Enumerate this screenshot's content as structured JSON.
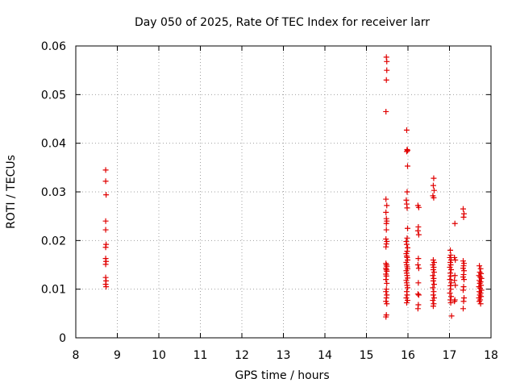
{
  "chart_data": {
    "type": "scatter",
    "title": "Day 050 of 2025, Rate Of TEC Index for receiver larr",
    "xlabel": "GPS time / hours",
    "ylabel": "ROTI / TECUs",
    "xlim": [
      8,
      18
    ],
    "ylim": [
      0,
      0.06
    ],
    "xticks": [
      "8",
      "9",
      "10",
      "11",
      "12",
      "13",
      "14",
      "15",
      "16",
      "17",
      "18"
    ],
    "yticks": [
      "0",
      "0.01",
      "0.02",
      "0.03",
      "0.04",
      "0.05",
      "0.06"
    ],
    "grid": true,
    "marker": "+",
    "color": "#e00000",
    "series": [
      {
        "points": [
          [
            8.72,
            0.0345
          ],
          [
            8.72,
            0.0322
          ],
          [
            8.73,
            0.0294
          ],
          [
            8.72,
            0.024
          ],
          [
            8.72,
            0.0222
          ],
          [
            8.73,
            0.0192
          ],
          [
            8.72,
            0.0186
          ],
          [
            8.72,
            0.0163
          ],
          [
            8.73,
            0.0157
          ],
          [
            8.72,
            0.0151
          ],
          [
            8.72,
            0.0124
          ],
          [
            8.73,
            0.0117
          ],
          [
            8.72,
            0.011
          ],
          [
            8.73,
            0.0105
          ],
          [
            15.48,
            0.0577
          ],
          [
            15.49,
            0.0568
          ],
          [
            15.49,
            0.055
          ],
          [
            15.48,
            0.053
          ],
          [
            15.47,
            0.0465
          ],
          [
            15.47,
            0.0285
          ],
          [
            15.49,
            0.0272
          ],
          [
            15.47,
            0.0258
          ],
          [
            15.48,
            0.0245
          ],
          [
            15.49,
            0.024
          ],
          [
            15.48,
            0.0235
          ],
          [
            15.48,
            0.0222
          ],
          [
            15.47,
            0.0203
          ],
          [
            15.49,
            0.0198
          ],
          [
            15.48,
            0.0193
          ],
          [
            15.47,
            0.0187
          ],
          [
            15.47,
            0.0153
          ],
          [
            15.48,
            0.015
          ],
          [
            15.49,
            0.0147
          ],
          [
            15.47,
            0.0143
          ],
          [
            15.48,
            0.014
          ],
          [
            15.49,
            0.0137
          ],
          [
            15.47,
            0.0131
          ],
          [
            15.48,
            0.0127
          ],
          [
            15.47,
            0.012
          ],
          [
            15.49,
            0.0112
          ],
          [
            15.48,
            0.01
          ],
          [
            15.47,
            0.0095
          ],
          [
            15.49,
            0.0088
          ],
          [
            15.48,
            0.0082
          ],
          [
            15.47,
            0.0075
          ],
          [
            15.49,
            0.007
          ],
          [
            15.48,
            0.0047
          ],
          [
            15.47,
            0.0043
          ],
          [
            15.97,
            0.0427
          ],
          [
            15.98,
            0.0387
          ],
          [
            15.99,
            0.0385
          ],
          [
            15.97,
            0.0383
          ],
          [
            15.99,
            0.0353
          ],
          [
            15.98,
            0.03
          ],
          [
            15.96,
            0.0283
          ],
          [
            15.97,
            0.0275
          ],
          [
            15.98,
            0.0267
          ],
          [
            15.99,
            0.0225
          ],
          [
            15.98,
            0.0205
          ],
          [
            15.96,
            0.0198
          ],
          [
            15.97,
            0.0192
          ],
          [
            15.99,
            0.0185
          ],
          [
            15.98,
            0.0178
          ],
          [
            15.96,
            0.0173
          ],
          [
            15.97,
            0.0168
          ],
          [
            15.98,
            0.0165
          ],
          [
            15.99,
            0.016
          ],
          [
            15.96,
            0.0155
          ],
          [
            15.97,
            0.015
          ],
          [
            15.98,
            0.0146
          ],
          [
            15.99,
            0.0142
          ],
          [
            15.96,
            0.0138
          ],
          [
            15.97,
            0.0133
          ],
          [
            15.98,
            0.0128
          ],
          [
            15.99,
            0.0123
          ],
          [
            15.96,
            0.0118
          ],
          [
            15.97,
            0.0113
          ],
          [
            15.98,
            0.0108
          ],
          [
            15.99,
            0.0103
          ],
          [
            15.97,
            0.0095
          ],
          [
            15.98,
            0.0088
          ],
          [
            15.96,
            0.0082
          ],
          [
            15.99,
            0.0077
          ],
          [
            15.97,
            0.0072
          ],
          [
            16.24,
            0.0272
          ],
          [
            16.26,
            0.0268
          ],
          [
            16.25,
            0.0228
          ],
          [
            16.24,
            0.022
          ],
          [
            16.26,
            0.0212
          ],
          [
            16.25,
            0.0163
          ],
          [
            16.24,
            0.015
          ],
          [
            16.26,
            0.0143
          ],
          [
            16.25,
            0.0113
          ],
          [
            16.24,
            0.009
          ],
          [
            16.26,
            0.0088
          ],
          [
            16.25,
            0.0068
          ],
          [
            16.24,
            0.006
          ],
          [
            16.62,
            0.0328
          ],
          [
            16.61,
            0.0313
          ],
          [
            16.63,
            0.0303
          ],
          [
            16.6,
            0.0292
          ],
          [
            16.62,
            0.0288
          ],
          [
            16.61,
            0.016
          ],
          [
            16.63,
            0.0155
          ],
          [
            16.6,
            0.015
          ],
          [
            16.62,
            0.0145
          ],
          [
            16.61,
            0.014
          ],
          [
            16.63,
            0.0135
          ],
          [
            16.6,
            0.0128
          ],
          [
            16.62,
            0.0122
          ],
          [
            16.61,
            0.0117
          ],
          [
            16.63,
            0.011
          ],
          [
            16.6,
            0.0103
          ],
          [
            16.62,
            0.0095
          ],
          [
            16.61,
            0.0088
          ],
          [
            16.63,
            0.0082
          ],
          [
            16.6,
            0.0077
          ],
          [
            16.62,
            0.007
          ],
          [
            16.61,
            0.0065
          ],
          [
            17.02,
            0.018
          ],
          [
            17.03,
            0.017
          ],
          [
            17.01,
            0.0165
          ],
          [
            17.04,
            0.016
          ],
          [
            17.02,
            0.0155
          ],
          [
            17.03,
            0.015
          ],
          [
            17.01,
            0.0145
          ],
          [
            17.04,
            0.014
          ],
          [
            17.02,
            0.0133
          ],
          [
            17.03,
            0.0127
          ],
          [
            17.01,
            0.012
          ],
          [
            17.04,
            0.0113
          ],
          [
            17.02,
            0.0107
          ],
          [
            17.03,
            0.01
          ],
          [
            17.01,
            0.0092
          ],
          [
            17.04,
            0.0085
          ],
          [
            17.02,
            0.0078
          ],
          [
            17.03,
            0.0072
          ],
          [
            17.05,
            0.0045
          ],
          [
            17.13,
            0.0235
          ],
          [
            17.12,
            0.0165
          ],
          [
            17.14,
            0.016
          ],
          [
            17.13,
            0.0128
          ],
          [
            17.12,
            0.0118
          ],
          [
            17.14,
            0.0108
          ],
          [
            17.13,
            0.0078
          ],
          [
            17.12,
            0.0075
          ],
          [
            17.33,
            0.0265
          ],
          [
            17.35,
            0.0255
          ],
          [
            17.34,
            0.0248
          ],
          [
            17.33,
            0.0158
          ],
          [
            17.35,
            0.0153
          ],
          [
            17.34,
            0.0148
          ],
          [
            17.33,
            0.0143
          ],
          [
            17.35,
            0.0138
          ],
          [
            17.34,
            0.013
          ],
          [
            17.33,
            0.0125
          ],
          [
            17.35,
            0.012
          ],
          [
            17.34,
            0.0105
          ],
          [
            17.33,
            0.0098
          ],
          [
            17.35,
            0.0082
          ],
          [
            17.34,
            0.0075
          ],
          [
            17.33,
            0.006
          ],
          [
            17.72,
            0.0148
          ],
          [
            17.75,
            0.0142
          ],
          [
            17.73,
            0.0135
          ],
          [
            17.76,
            0.0132
          ],
          [
            17.71,
            0.0128
          ],
          [
            17.74,
            0.0125
          ],
          [
            17.77,
            0.0122
          ],
          [
            17.72,
            0.0118
          ],
          [
            17.75,
            0.0115
          ],
          [
            17.73,
            0.0112
          ],
          [
            17.76,
            0.0108
          ],
          [
            17.71,
            0.0105
          ],
          [
            17.74,
            0.0102
          ],
          [
            17.77,
            0.0098
          ],
          [
            17.72,
            0.0095
          ],
          [
            17.75,
            0.0092
          ],
          [
            17.73,
            0.0088
          ],
          [
            17.76,
            0.0085
          ],
          [
            17.71,
            0.0082
          ],
          [
            17.74,
            0.0078
          ],
          [
            17.72,
            0.0075
          ],
          [
            17.75,
            0.007
          ]
        ]
      }
    ]
  }
}
